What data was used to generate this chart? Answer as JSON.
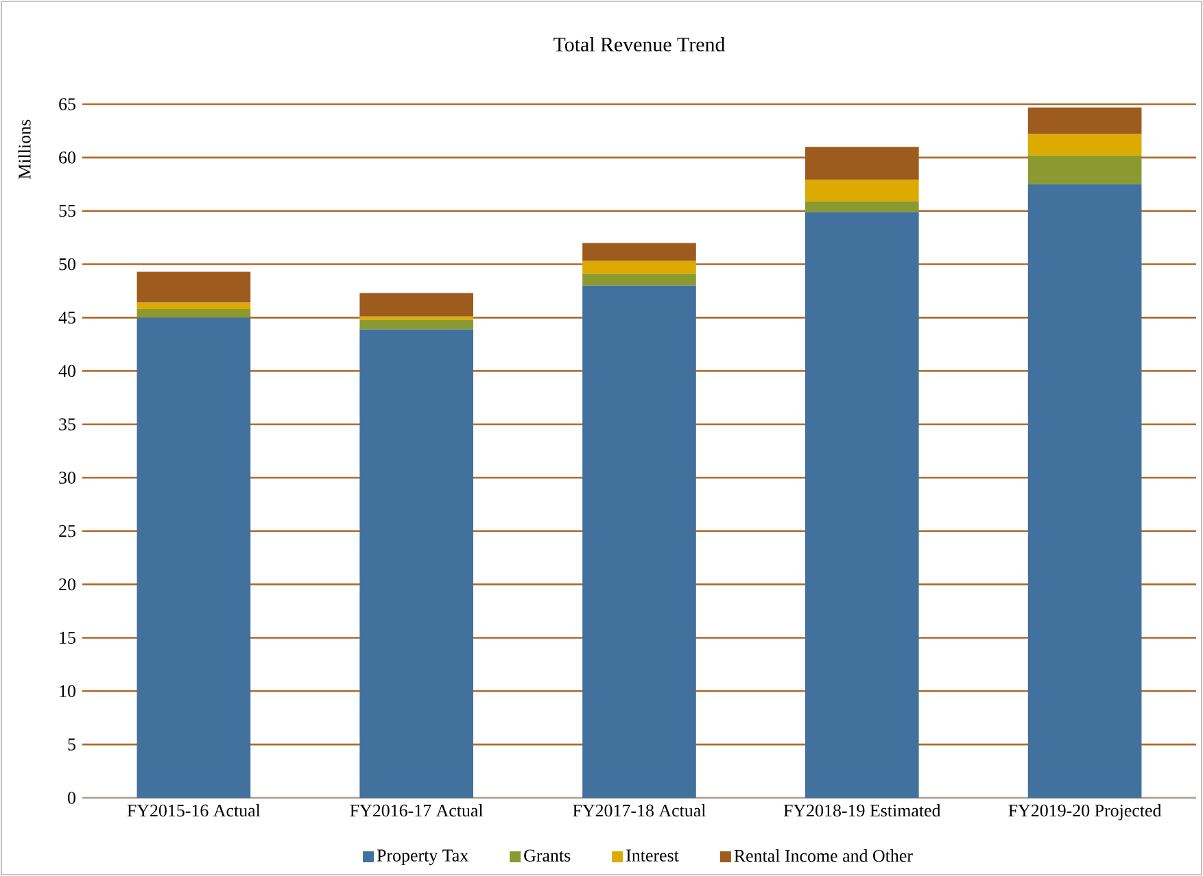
{
  "chart_data": {
    "type": "bar",
    "stacked": true,
    "title": "Total Revenue Trend",
    "ylabel": "Millions",
    "categories": [
      "FY2015-16 Actual",
      "FY2016-17 Actual",
      "FY2017-18 Actual",
      "FY2018-19 Estimated",
      "FY2019-20 Projected"
    ],
    "series": [
      {
        "name": "Property Tax",
        "color": "#41719c",
        "values": [
          45.0,
          43.9,
          48.0,
          54.9,
          57.5
        ]
      },
      {
        "name": "Grants",
        "color": "#8a9a30",
        "values": [
          0.8,
          0.9,
          1.1,
          1.0,
          2.7
        ]
      },
      {
        "name": "Interest",
        "color": "#dcaa00",
        "values": [
          0.6,
          0.3,
          1.2,
          2.0,
          2.0
        ]
      },
      {
        "name": "Rental Income and Other",
        "color": "#9e5b1e",
        "values": [
          2.9,
          2.2,
          1.7,
          3.1,
          2.5
        ]
      }
    ],
    "ylim": [
      0,
      65
    ],
    "yticks": [
      0,
      5,
      10,
      15,
      20,
      25,
      30,
      35,
      40,
      45,
      50,
      55,
      60,
      65
    ],
    "grid": "y",
    "legend": "bottom"
  }
}
